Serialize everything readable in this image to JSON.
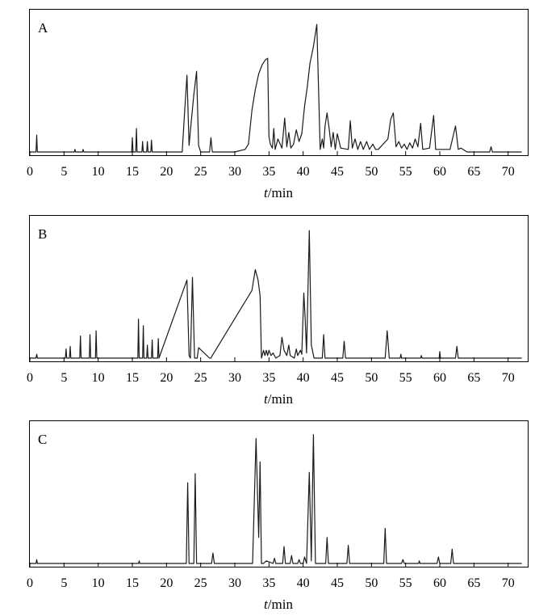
{
  "chart_data": [
    {
      "type": "line",
      "panel_label": "A",
      "xlabel_var": "t",
      "xlabel_unit": "/min",
      "xlim": [
        0,
        72
      ],
      "ylim": [
        0,
        100
      ],
      "xticks": [
        0,
        5,
        10,
        15,
        20,
        25,
        30,
        35,
        40,
        45,
        50,
        55,
        60,
        65,
        70
      ],
      "x": [
        0,
        0.9,
        1.0,
        1.1,
        1.6,
        6.5,
        6.6,
        6.7,
        7.7,
        7.8,
        7.9,
        14.9,
        15.0,
        15.1,
        15.5,
        15.6,
        15.7,
        16.4,
        16.5,
        16.6,
        17.1,
        17.2,
        17.3,
        17.7,
        17.8,
        17.9,
        22.0,
        22.3,
        22.7,
        23.0,
        23.3,
        23.6,
        24.0,
        24.4,
        24.7,
        25.0,
        26.3,
        26.5,
        26.7,
        30.0,
        31.5,
        32.0,
        32.5,
        33.0,
        33.5,
        34.0,
        34.5,
        34.8,
        35.0,
        35.2,
        35.5,
        35.7,
        35.9,
        36.3,
        36.9,
        37.3,
        37.6,
        37.9,
        38.2,
        38.6,
        39.0,
        39.4,
        39.8,
        40.2,
        40.6,
        41.0,
        41.5,
        42.0,
        42.5,
        42.8,
        43.0,
        43.2,
        43.5,
        43.8,
        44.1,
        44.4,
        44.7,
        45.0,
        45.5,
        46.6,
        46.9,
        47.2,
        47.6,
        48.0,
        48.4,
        48.8,
        49.3,
        49.7,
        50.2,
        50.6,
        51.0,
        52.4,
        52.8,
        53.2,
        53.6,
        54.0,
        54.4,
        54.8,
        55.2,
        55.6,
        56.0,
        56.4,
        56.8,
        57.2,
        57.5,
        58.5,
        59.1,
        59.4,
        59.7,
        61.5,
        62.3,
        62.7,
        63.1,
        64.0,
        67.3,
        67.5,
        67.7,
        70.0,
        72.0
      ],
      "values": [
        0,
        0,
        13,
        0,
        0,
        0,
        2,
        0,
        0,
        2,
        0,
        0,
        11,
        0,
        0,
        18,
        0,
        0,
        8,
        0,
        0,
        8,
        0,
        0,
        9,
        0,
        0,
        0,
        35,
        59,
        5,
        22,
        44,
        62,
        5,
        0,
        0,
        11,
        0,
        0,
        2,
        6,
        32,
        48,
        60,
        67,
        71,
        72,
        12,
        6,
        3,
        18,
        2,
        10,
        3,
        26,
        4,
        15,
        3,
        6,
        17,
        8,
        14,
        35,
        50,
        68,
        81,
        98,
        2,
        10,
        3,
        20,
        30,
        18,
        4,
        15,
        2,
        14,
        3,
        2,
        24,
        3,
        10,
        2,
        8,
        2,
        8,
        2,
        6,
        2,
        2,
        10,
        25,
        30,
        4,
        8,
        3,
        6,
        2,
        7,
        3,
        10,
        4,
        22,
        2,
        3,
        28,
        2,
        2,
        2,
        20,
        2,
        3,
        0,
        0,
        4,
        0,
        0,
        0
      ]
    },
    {
      "type": "line",
      "panel_label": "B",
      "xlabel_var": "t",
      "xlabel_unit": "/min",
      "xlim": [
        0,
        72
      ],
      "ylim": [
        0,
        100
      ],
      "xticks": [
        0,
        5,
        10,
        15,
        20,
        25,
        30,
        35,
        40,
        45,
        50,
        55,
        60,
        65,
        70
      ],
      "x": [
        0,
        0.9,
        1.0,
        1.1,
        5.2,
        5.3,
        5.4,
        5.8,
        5.9,
        6.0,
        7.3,
        7.4,
        7.5,
        8.7,
        8.8,
        8.9,
        9.6,
        9.7,
        9.8,
        15.8,
        15.9,
        16.0,
        16.5,
        16.6,
        16.7,
        17.1,
        17.2,
        17.3,
        17.8,
        17.9,
        18.0,
        18.7,
        18.8,
        18.9,
        23.0,
        23.3,
        23.5,
        23.8,
        24.1,
        24.5,
        24.7,
        26.3,
        26.5,
        26.7,
        32.5,
        33.0,
        33.4,
        33.7,
        33.9,
        34.2,
        34.4,
        34.6,
        34.8,
        35.0,
        35.3,
        35.6,
        36.0,
        36.6,
        36.9,
        37.2,
        37.6,
        37.9,
        38.1,
        38.7,
        39.0,
        39.2,
        39.6,
        39.8,
        40.1,
        40.3,
        40.5,
        40.9,
        41.2,
        41.6,
        42.8,
        43.0,
        43.2,
        45.8,
        46.0,
        46.2,
        52.0,
        52.3,
        52.6,
        54.2,
        54.3,
        54.4,
        57.2,
        57.3,
        57.4,
        59.9,
        60.0,
        60.1,
        62.3,
        62.5,
        62.7,
        70.0,
        72.0
      ],
      "values": [
        0,
        0,
        3,
        0,
        0,
        7,
        0,
        0,
        9,
        0,
        0,
        17,
        0,
        0,
        18,
        0,
        0,
        21,
        0,
        0,
        30,
        0,
        0,
        25,
        0,
        0,
        10,
        0,
        0,
        14,
        0,
        0,
        15,
        0,
        60,
        2,
        0,
        62,
        0,
        0,
        8,
        0,
        0,
        2,
        52,
        68,
        60,
        48,
        0,
        6,
        2,
        6,
        2,
        6,
        2,
        4,
        0,
        2,
        16,
        6,
        2,
        10,
        2,
        0,
        7,
        2,
        6,
        3,
        50,
        30,
        4,
        98,
        10,
        0,
        0,
        18,
        0,
        0,
        13,
        0,
        0,
        21,
        0,
        0,
        3,
        0,
        0,
        2,
        0,
        0,
        5,
        0,
        0,
        9,
        0,
        0,
        0
      ]
    },
    {
      "type": "line",
      "panel_label": "C",
      "xlabel_var": "t",
      "xlabel_unit": "/min",
      "xlim": [
        0,
        72
      ],
      "ylim": [
        0,
        100
      ],
      "xticks": [
        0,
        5,
        10,
        15,
        20,
        25,
        30,
        35,
        40,
        45,
        50,
        55,
        60,
        65,
        70
      ],
      "x": [
        0,
        0.9,
        1.0,
        1.1,
        15.9,
        16.0,
        16.1,
        22.9,
        23.1,
        23.3,
        24.0,
        24.2,
        24.4,
        26.6,
        26.8,
        27.0,
        32.6,
        33.1,
        33.5,
        33.7,
        33.9,
        34.2,
        34.6,
        35.6,
        35.8,
        36.0,
        37.0,
        37.2,
        37.4,
        38.1,
        38.3,
        38.5,
        39.2,
        39.4,
        39.6,
        40.0,
        40.2,
        40.5,
        40.9,
        41.2,
        41.5,
        41.8,
        43.3,
        43.5,
        43.7,
        46.4,
        46.6,
        46.8,
        51.8,
        52.0,
        52.2,
        54.4,
        54.6,
        54.8,
        56.9,
        57.0,
        57.1,
        59.6,
        59.8,
        60.0,
        61.6,
        61.8,
        62.0,
        70.0,
        72.0
      ],
      "values": [
        0,
        0,
        3,
        0,
        0,
        2,
        0,
        0,
        62,
        0,
        0,
        69,
        0,
        0,
        8,
        0,
        0,
        96,
        20,
        78,
        0,
        0,
        2,
        0,
        4,
        0,
        0,
        13,
        0,
        0,
        6,
        0,
        0,
        3,
        0,
        0,
        5,
        0,
        70,
        2,
        99,
        0,
        0,
        20,
        0,
        0,
        14,
        0,
        0,
        27,
        0,
        0,
        3,
        0,
        0,
        2,
        0,
        0,
        5,
        0,
        0,
        11,
        0,
        0,
        0
      ]
    }
  ]
}
